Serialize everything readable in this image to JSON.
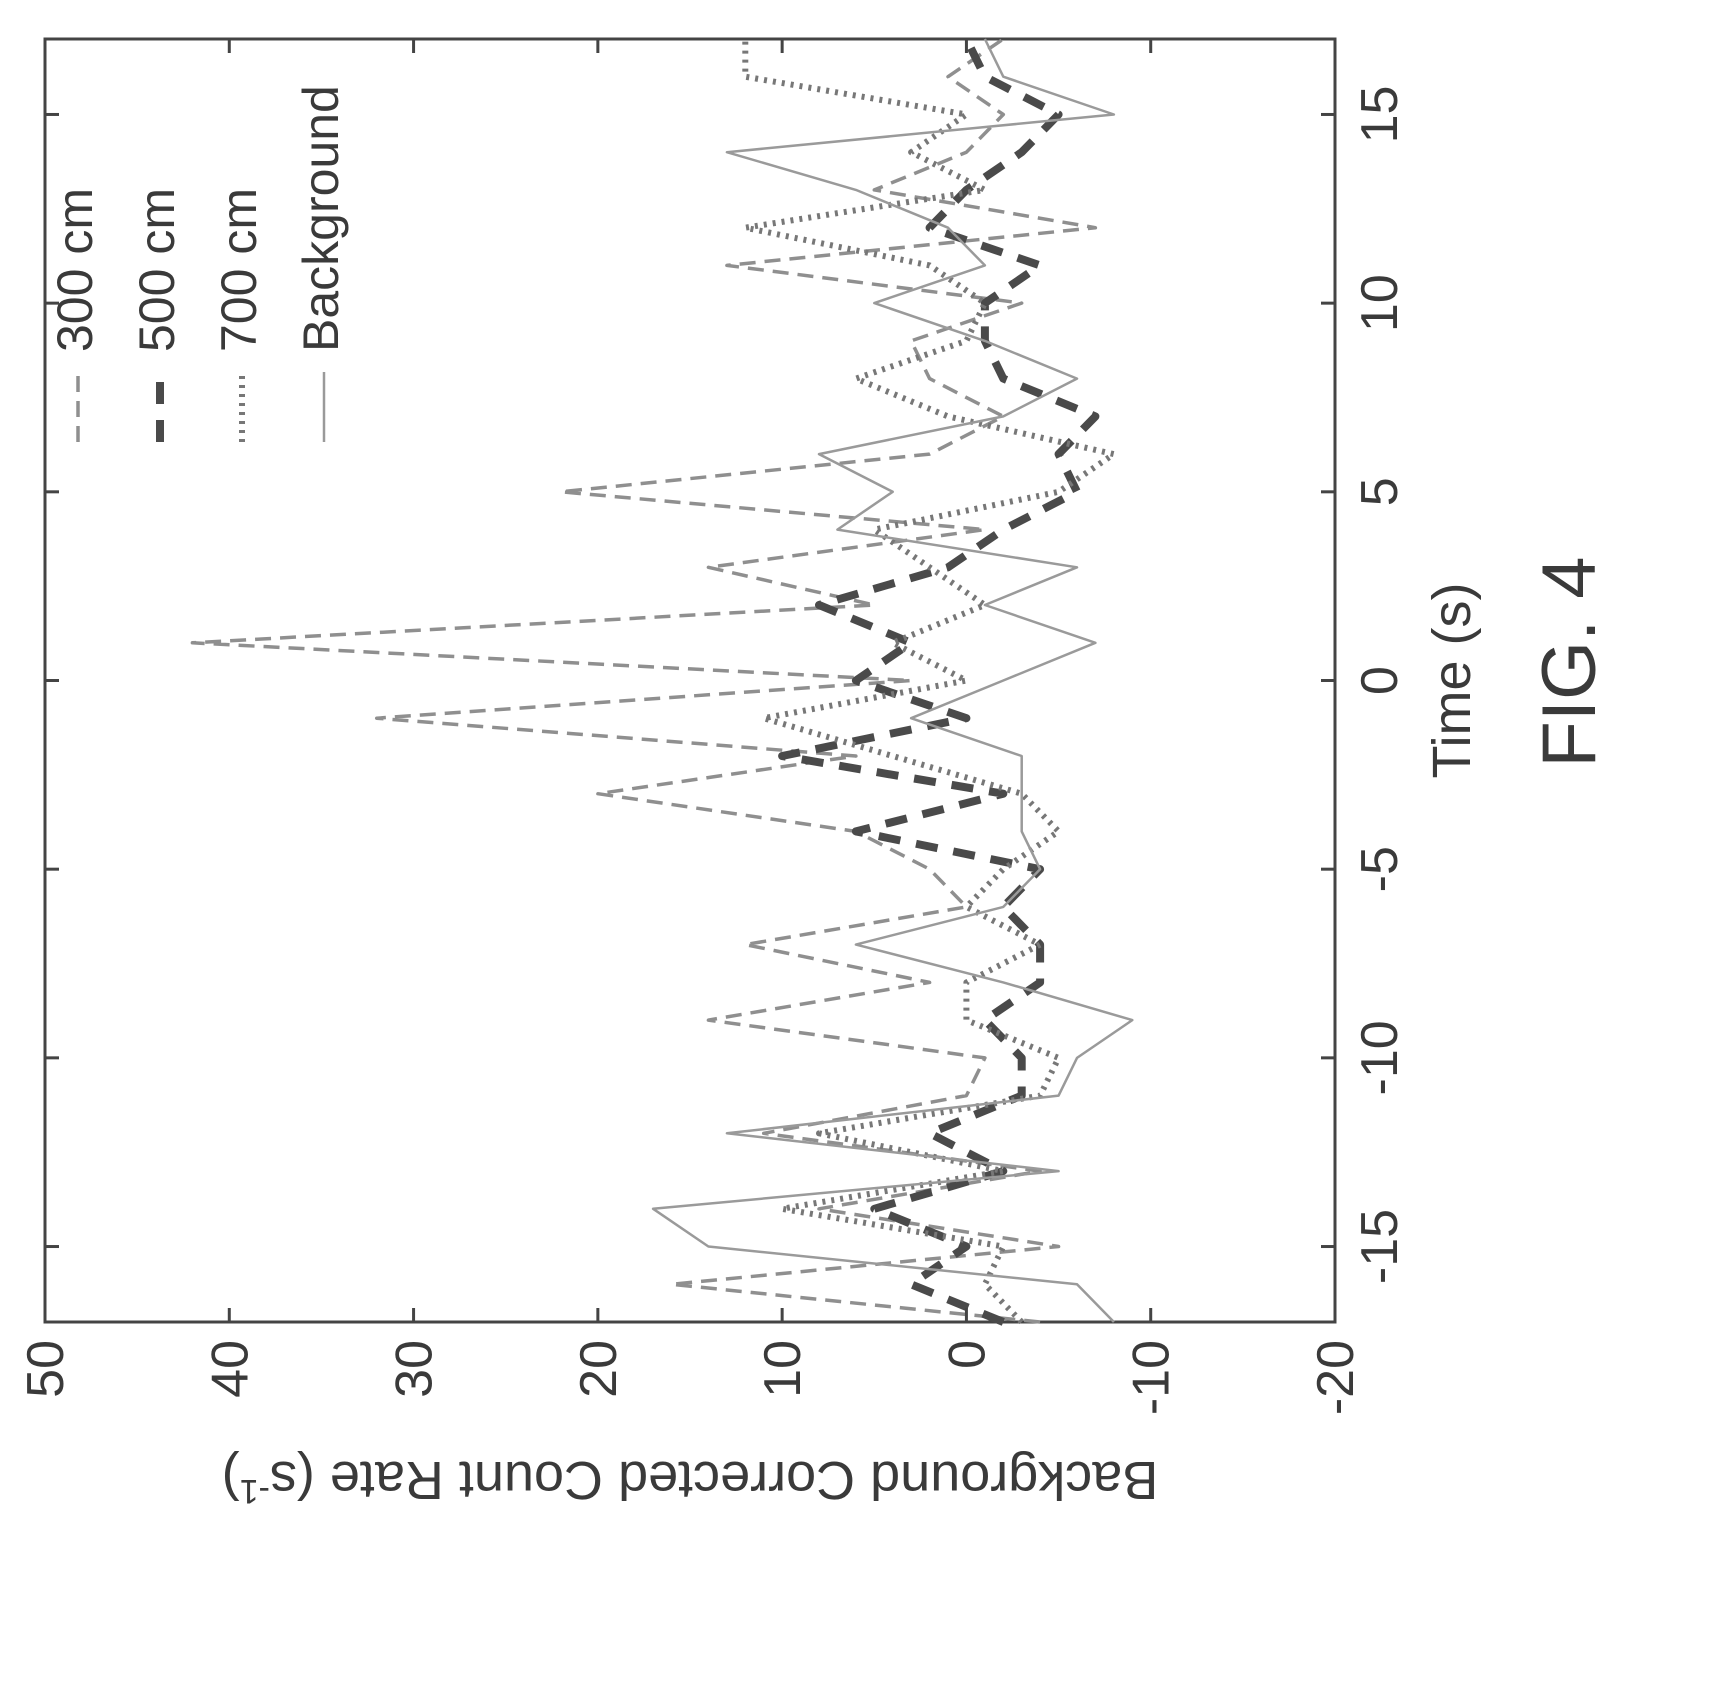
{
  "figure_label": "FIG. 4",
  "chart_data": {
    "type": "line",
    "title": "",
    "xlabel": "Time (s)",
    "ylabel": "Background Corrected Count Rate (s",
    "ylabel_sup": "-1",
    "ylabel_tail": ")",
    "xlim": [
      -17,
      17
    ],
    "ylim": [
      -20,
      50
    ],
    "xticks": [
      -15,
      -10,
      -5,
      0,
      5,
      10,
      15
    ],
    "xtick_labels": [
      "-15",
      "-10",
      "-5",
      "0",
      "5",
      "10",
      "15"
    ],
    "yticks": [
      -20,
      -10,
      0,
      10,
      20,
      30,
      40,
      50
    ],
    "ytick_labels": [
      "-20",
      "-10",
      "0",
      "10",
      "20",
      "30",
      "40",
      "50"
    ],
    "grid": false,
    "legend_position": "top-right",
    "orientation": "rotated 90 degrees counter-clockwise on the page",
    "x": [
      -17,
      -16,
      -15,
      -14,
      -13,
      -12,
      -11,
      -10,
      -9,
      -8,
      -7,
      -6,
      -5,
      -4,
      -3,
      -2,
      -1,
      0,
      1,
      2,
      3,
      4,
      5,
      6,
      7,
      8,
      9,
      10,
      11,
      12,
      13,
      14,
      15,
      16,
      17
    ],
    "series": [
      {
        "name": "300 cm",
        "style": "dashed-light",
        "color": "#8f8f8f",
        "values": [
          -4,
          16,
          -5,
          8,
          -4,
          11,
          0,
          -1,
          14,
          2,
          12,
          0,
          2,
          6,
          20,
          6,
          32,
          3,
          42,
          5,
          14,
          -1,
          22,
          2,
          -2,
          2,
          3,
          -3,
          13,
          -7,
          5,
          0,
          -2,
          1,
          -2
        ]
      },
      {
        "name": "500 cm",
        "style": "dashed-heavy",
        "color": "#4a4a4a",
        "values": [
          -2,
          3,
          0,
          5,
          -2,
          2,
          -3,
          -3,
          -1,
          -4,
          -4,
          -2,
          -4,
          6,
          -2,
          10,
          0,
          6,
          3,
          8,
          1,
          -2,
          -6,
          -5,
          -7,
          -2,
          -1,
          -1,
          -4,
          2,
          0,
          -3,
          -5,
          -1,
          0
        ]
      },
      {
        "name": "700 cm",
        "style": "dotted",
        "color": "#777777",
        "values": [
          -3,
          -1,
          -2,
          10,
          -2,
          8,
          -4,
          -5,
          0,
          0,
          -4,
          0,
          -2,
          -5,
          -3,
          4,
          11,
          0,
          4,
          -1,
          2,
          5,
          -5,
          -8,
          1,
          6,
          0,
          -1,
          2,
          12,
          -1,
          3,
          0,
          12,
          12
        ]
      },
      {
        "name": "Background",
        "style": "solid-light",
        "color": "#9a9a9a",
        "values": [
          -8,
          -6,
          14,
          17,
          -5,
          13,
          -5,
          -6,
          -9,
          -2,
          6,
          -2,
          -4,
          -3,
          -3,
          -3,
          3,
          -2,
          -7,
          -1,
          -6,
          7,
          4,
          8,
          -2,
          -6,
          -1,
          5,
          -1,
          1,
          6,
          13,
          -8,
          -2,
          -1
        ]
      }
    ]
  }
}
